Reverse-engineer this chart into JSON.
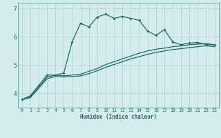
{
  "xlabel": "Humidex (Indice chaleur)",
  "ylabel": "",
  "background_color": "#d4ecee",
  "grid_color": "#b8d8da",
  "line_color": "#1a6b6b",
  "xlim": [
    -0.5,
    23.5
  ],
  "ylim": [
    3.5,
    7.2
  ],
  "yticks": [
    4,
    5,
    6,
    7
  ],
  "xticks": [
    0,
    1,
    2,
    3,
    4,
    5,
    6,
    7,
    8,
    9,
    10,
    11,
    12,
    13,
    14,
    15,
    16,
    17,
    18,
    19,
    20,
    21,
    22,
    23
  ],
  "series1_x": [
    0,
    1,
    2,
    3,
    4,
    5,
    6,
    7,
    8,
    9,
    10,
    11,
    12,
    13,
    14,
    15,
    16,
    17,
    18,
    19,
    20,
    21,
    22,
    23
  ],
  "series1_y": [
    3.78,
    3.92,
    4.28,
    4.65,
    4.65,
    4.72,
    5.82,
    6.48,
    6.35,
    6.7,
    6.8,
    6.65,
    6.72,
    6.65,
    6.58,
    6.2,
    6.05,
    6.25,
    5.82,
    5.72,
    5.78,
    5.8,
    5.72,
    5.72
  ],
  "series2_x": [
    0,
    1,
    2,
    3,
    4,
    5,
    6,
    7,
    8,
    9,
    10,
    11,
    12,
    13,
    14,
    15,
    16,
    17,
    18,
    19,
    20,
    21,
    22,
    23
  ],
  "series2_y": [
    3.78,
    3.88,
    4.22,
    4.58,
    4.65,
    4.62,
    4.65,
    4.68,
    4.78,
    4.88,
    5.02,
    5.12,
    5.22,
    5.32,
    5.42,
    5.5,
    5.56,
    5.6,
    5.65,
    5.68,
    5.72,
    5.74,
    5.76,
    5.72
  ],
  "series3_x": [
    0,
    1,
    2,
    3,
    4,
    5,
    6,
    7,
    8,
    9,
    10,
    11,
    12,
    13,
    14,
    15,
    16,
    17,
    18,
    19,
    20,
    21,
    22,
    23
  ],
  "series3_y": [
    3.78,
    3.85,
    4.18,
    4.52,
    4.6,
    4.58,
    4.6,
    4.62,
    4.7,
    4.8,
    4.92,
    5.02,
    5.12,
    5.22,
    5.3,
    5.38,
    5.45,
    5.5,
    5.55,
    5.58,
    5.62,
    5.65,
    5.68,
    5.65
  ]
}
